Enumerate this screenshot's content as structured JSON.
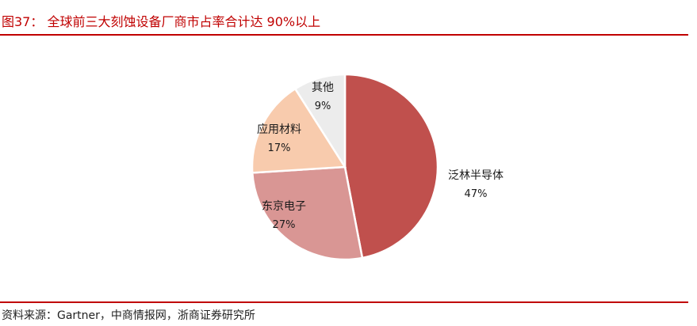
{
  "header": {
    "title": "图37：  全球前三大刻蚀设备厂商市占率合计达 90%以上"
  },
  "footer": {
    "source": "资料来源：Gartner，中商情报网，浙商证券研究所"
  },
  "chart_data": {
    "type": "pie",
    "title": "",
    "slices": [
      {
        "label": "泛林半导体",
        "value": 47,
        "value_label": "47%",
        "color": "#c0504d"
      },
      {
        "label": "东京电子",
        "value": 27,
        "value_label": "27%",
        "color": "#d99694"
      },
      {
        "label": "应用材料",
        "value": 17,
        "value_label": "17%",
        "color": "#f8cbad"
      },
      {
        "label": "其他",
        "value": 9,
        "value_label": "9%",
        "color": "#ececec"
      }
    ],
    "start_angle": "12 o'clock",
    "direction": "clockwise",
    "legend": "none (labels on/next to slices)"
  }
}
